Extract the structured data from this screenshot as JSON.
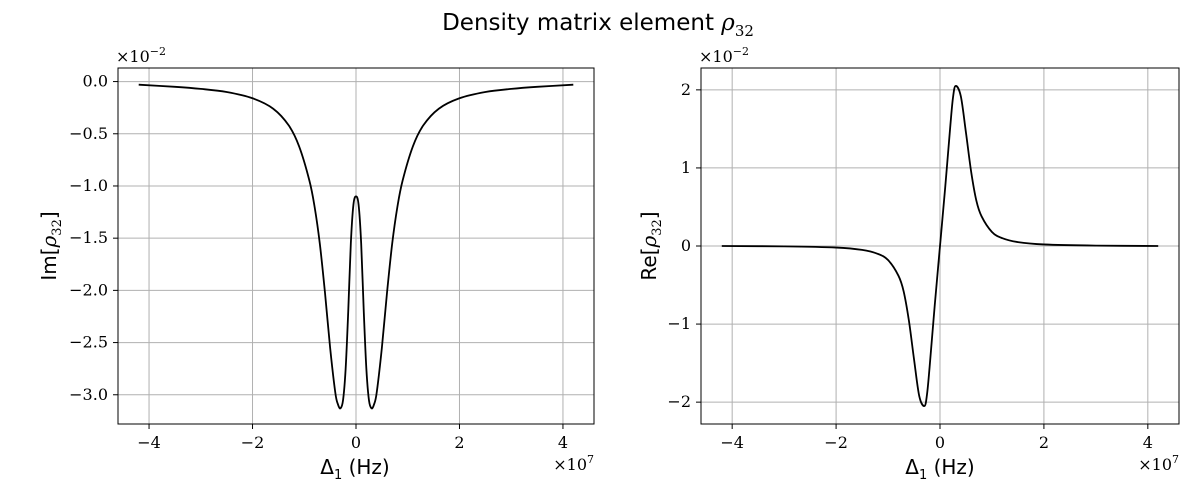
{
  "figure": {
    "title_text": "Density matrix element ",
    "title_symbol": "ρ",
    "title_subscript": "32"
  },
  "chart_data": [
    {
      "type": "line",
      "name": "Imaginary part",
      "ylabel_prefix": "Im[",
      "ylabel_symbol": "ρ",
      "ylabel_subscript": "32",
      "ylabel_suffix": "]",
      "xlabel_symbol": "Δ",
      "xlabel_subscript": "1",
      "xlabel_unit": " (Hz)",
      "x_scale_label": "×10",
      "x_scale_exponent": "7",
      "y_scale_label": "×10",
      "y_scale_exponent": "−2",
      "xlim": [
        -4.6,
        4.6
      ],
      "ylim": [
        -3.28,
        0.13
      ],
      "xticks": [
        -4,
        -2,
        0,
        2,
        4
      ],
      "xtick_labels": [
        "−4",
        "−2",
        "0",
        "2",
        "4"
      ],
      "yticks": [
        0.0,
        -0.5,
        -1.0,
        -1.5,
        -2.0,
        -2.5,
        -3.0
      ],
      "ytick_labels": [
        "0.0",
        "−0.5",
        "−1.0",
        "−1.5",
        "−2.0",
        "−2.5",
        "−3.0"
      ],
      "grid": true,
      "line_color": "#000000",
      "grid_color": "#b0b0b0",
      "x": [
        -4.2,
        -3.5,
        -3.0,
        -2.5,
        -2.0,
        -1.6,
        -1.3,
        -1.1,
        -0.9,
        -0.8,
        -0.7,
        -0.6,
        -0.5,
        -0.4,
        -0.35,
        -0.3,
        -0.25,
        -0.2,
        -0.15,
        -0.1,
        -0.05,
        0.0,
        0.05,
        0.1,
        0.15,
        0.2,
        0.25,
        0.3,
        0.35,
        0.4,
        0.5,
        0.6,
        0.7,
        0.8,
        0.9,
        1.1,
        1.3,
        1.6,
        2.0,
        2.5,
        3.0,
        3.5,
        4.2
      ],
      "values": [
        -0.03,
        -0.05,
        -0.07,
        -0.1,
        -0.16,
        -0.26,
        -0.42,
        -0.62,
        -0.95,
        -1.2,
        -1.55,
        -2.02,
        -2.55,
        -2.98,
        -3.09,
        -3.13,
        -3.05,
        -2.75,
        -2.2,
        -1.55,
        -1.18,
        -1.1,
        -1.18,
        -1.55,
        -2.2,
        -2.75,
        -3.05,
        -3.13,
        -3.09,
        -2.98,
        -2.55,
        -2.02,
        -1.55,
        -1.2,
        -0.95,
        -0.62,
        -0.42,
        -0.26,
        -0.16,
        -0.1,
        -0.07,
        -0.05,
        -0.03
      ]
    },
    {
      "type": "line",
      "name": "Real part",
      "ylabel_prefix": "Re[",
      "ylabel_symbol": "ρ",
      "ylabel_subscript": "32",
      "ylabel_suffix": "]",
      "xlabel_symbol": "Δ",
      "xlabel_subscript": "1",
      "xlabel_unit": " (Hz)",
      "x_scale_label": "×10",
      "x_scale_exponent": "7",
      "y_scale_label": "×10",
      "y_scale_exponent": "−2",
      "xlim": [
        -4.6,
        4.6
      ],
      "ylim": [
        -2.28,
        2.28
      ],
      "xticks": [
        -4,
        -2,
        0,
        2,
        4
      ],
      "xtick_labels": [
        "−4",
        "−2",
        "0",
        "2",
        "4"
      ],
      "yticks": [
        2,
        1,
        0,
        -1,
        -2
      ],
      "ytick_labels": [
        "2",
        "1",
        "0",
        "−1",
        "−2"
      ],
      "grid": true,
      "line_color": "#000000",
      "grid_color": "#b0b0b0",
      "x": [
        -4.2,
        -3.0,
        -2.0,
        -1.5,
        -1.2,
        -1.0,
        -0.8,
        -0.7,
        -0.6,
        -0.5,
        -0.4,
        -0.3,
        -0.25,
        -0.2,
        -0.1,
        0.0,
        0.1,
        0.2,
        0.25,
        0.3,
        0.4,
        0.5,
        0.6,
        0.7,
        0.8,
        1.0,
        1.2,
        1.5,
        2.0,
        3.0,
        4.2
      ],
      "values": [
        0.0,
        -0.005,
        -0.02,
        -0.05,
        -0.1,
        -0.18,
        -0.38,
        -0.58,
        -0.95,
        -1.45,
        -1.92,
        -2.05,
        -1.9,
        -1.55,
        -0.75,
        0.0,
        0.75,
        1.55,
        1.9,
        2.05,
        1.92,
        1.45,
        0.95,
        0.58,
        0.38,
        0.18,
        0.1,
        0.05,
        0.02,
        0.005,
        0.0
      ]
    }
  ]
}
